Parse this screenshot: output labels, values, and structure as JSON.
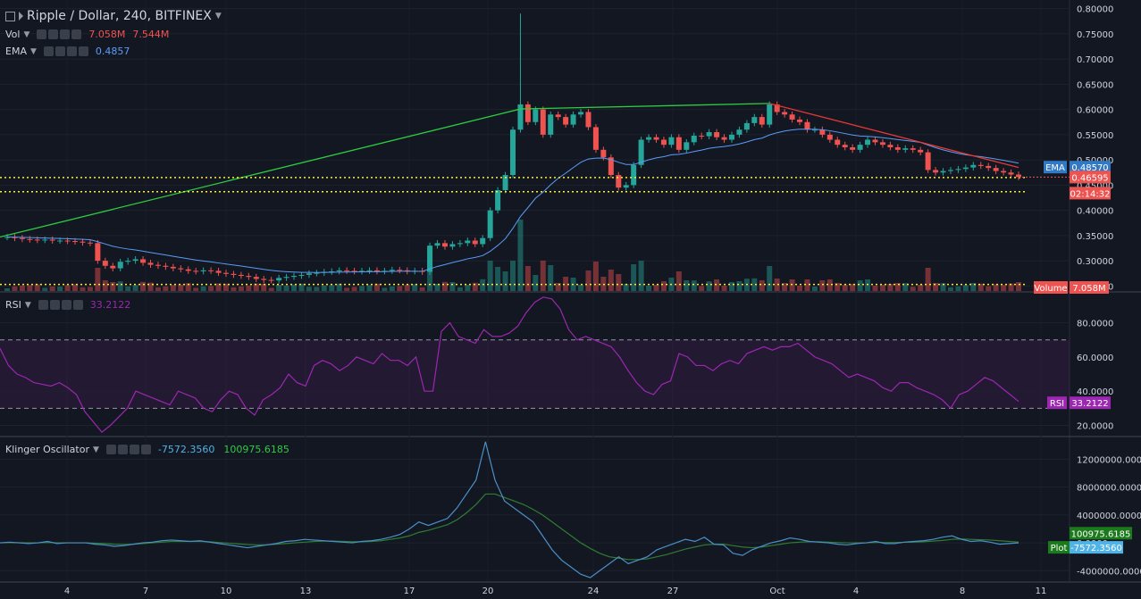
{
  "header": {
    "symbol": "Ripple / Dollar, 240, BITFINEX",
    "vol_label": "Vol",
    "vol_value_1": "7.058M",
    "vol_value_2": "7.544M",
    "ema_label": "EMA",
    "ema_value": "0.4857"
  },
  "rsi_legend": {
    "label": "RSI",
    "value": "33.2122"
  },
  "klinger_legend": {
    "label": "Klinger Oscillator",
    "value_1": "-7572.3560",
    "value_2": "100975.6185"
  },
  "colors": {
    "bg": "#131722",
    "up": "#26a69a",
    "down": "#ef5350",
    "ema": "#5b9cf6",
    "rsi": "#9c27b0",
    "green_line": "#2ecc40",
    "red_line": "#e53935",
    "yellow": "#ffeb3b",
    "klinger": "#4a90c8",
    "klinger_signal": "#2e7d32"
  },
  "axis_labels": {
    "price": [
      "0.80000",
      "0.75000",
      "0.70000",
      "0.65000",
      "0.60000",
      "0.55000",
      "0.50000",
      "0.45000",
      "0.40000",
      "0.35000",
      "0.30000",
      "0.25000"
    ],
    "rsi": [
      "80.0000",
      "60.0000",
      "40.0000",
      "20.0000"
    ],
    "klinger": [
      "12000000.0000",
      "8000000.0000",
      "4000000.0000",
      "0.0000",
      "-4000000.0000"
    ],
    "dates": [
      "4",
      "7",
      "10",
      "13",
      "17",
      "20",
      "24",
      "27",
      "Oct",
      "4",
      "8",
      "11"
    ]
  },
  "badges": {
    "ema_tag": "EMA",
    "ema_val": "0.48570",
    "price": "0.46595",
    "countdown": "02:14:32",
    "volume_tag": "Volume",
    "volume_val": "7.058M",
    "rsi_tag": "RSI",
    "rsi_val": "33.2122",
    "kl_val": "100975.6185",
    "plot_tag": "Plot",
    "plot_val": "-7572.3560"
  },
  "chart_data": {
    "type": "candlestick",
    "title": "Ripple / Dollar, 240, BITFINEX",
    "price_ylim": [
      0.24,
      0.81
    ],
    "price_close": [
      0.347,
      0.345,
      0.343,
      0.342,
      0.341,
      0.342,
      0.34,
      0.34,
      0.339,
      0.338,
      0.336,
      0.335,
      0.3,
      0.29,
      0.285,
      0.298,
      0.3,
      0.303,
      0.296,
      0.292,
      0.29,
      0.288,
      0.285,
      0.283,
      0.28,
      0.279,
      0.281,
      0.28,
      0.276,
      0.274,
      0.272,
      0.27,
      0.268,
      0.264,
      0.262,
      0.261,
      0.266,
      0.268,
      0.27,
      0.272,
      0.275,
      0.276,
      0.278,
      0.279,
      0.281,
      0.28,
      0.279,
      0.28,
      0.281,
      0.279,
      0.28,
      0.282,
      0.281,
      0.279,
      0.28,
      0.278,
      0.33,
      0.335,
      0.328,
      0.333,
      0.335,
      0.34,
      0.333,
      0.345,
      0.4,
      0.44,
      0.47,
      0.56,
      0.61,
      0.575,
      0.6,
      0.55,
      0.59,
      0.585,
      0.57,
      0.59,
      0.595,
      0.565,
      0.52,
      0.505,
      0.47,
      0.445,
      0.45,
      0.49,
      0.54,
      0.545,
      0.54,
      0.53,
      0.545,
      0.52,
      0.535,
      0.548,
      0.547,
      0.555,
      0.545,
      0.54,
      0.55,
      0.56,
      0.573,
      0.585,
      0.57,
      0.61,
      0.595,
      0.59,
      0.58,
      0.575,
      0.56,
      0.56,
      0.55,
      0.54,
      0.53,
      0.525,
      0.52,
      0.53,
      0.54,
      0.535,
      0.53,
      0.525,
      0.52,
      0.523,
      0.52,
      0.515,
      0.48,
      0.475,
      0.478,
      0.48,
      0.482,
      0.485,
      0.49,
      0.488,
      0.484,
      0.478,
      0.475,
      0.471,
      0.466
    ],
    "price_range": [
      0.335,
      0.61
    ],
    "highest_wick": 0.79,
    "ema_last": 0.4857,
    "volume_last": "7.058M",
    "rsi": [
      65,
      55,
      50,
      48,
      45,
      44,
      43,
      45,
      42,
      38,
      28,
      22,
      16,
      20,
      25,
      30,
      40,
      38,
      36,
      34,
      32,
      40,
      38,
      36,
      30,
      28,
      35,
      40,
      38,
      30,
      26,
      35,
      38,
      42,
      50,
      45,
      43,
      55,
      58,
      56,
      52,
      55,
      60,
      58,
      56,
      62,
      58,
      58,
      55,
      60,
      40,
      40,
      75,
      80,
      72,
      70,
      68,
      76,
      72,
      72,
      74,
      78,
      86,
      92,
      95,
      94,
      88,
      76,
      70,
      72,
      70,
      68,
      66,
      60,
      52,
      45,
      40,
      38,
      44,
      46,
      62,
      60,
      55,
      55,
      52,
      56,
      58,
      56,
      62,
      64,
      66,
      64,
      66,
      66,
      68,
      64,
      60,
      58,
      56,
      52,
      48,
      50,
      48,
      46,
      42,
      40,
      45,
      45,
      42,
      40,
      38,
      35,
      30,
      38,
      40,
      44,
      48,
      46,
      42,
      38,
      34
    ],
    "rsi_ylim": [
      14,
      97
    ],
    "rsi_bands": [
      70,
      30
    ],
    "klinger": [
      0,
      100000,
      0,
      -100000,
      0,
      200000,
      -100000,
      0,
      0,
      0,
      -200000,
      -300000,
      -500000,
      -400000,
      -200000,
      0,
      100000,
      300000,
      400000,
      300000,
      200000,
      300000,
      100000,
      -100000,
      -300000,
      -500000,
      -700000,
      -500000,
      -300000,
      -100000,
      200000,
      300000,
      500000,
      400000,
      300000,
      200000,
      100000,
      0,
      200000,
      300000,
      500000,
      800000,
      1200000,
      2000000,
      3000000,
      2500000,
      3000000,
      3500000,
      5000000,
      7000000,
      9000000,
      14500000,
      9000000,
      6000000,
      5000000,
      4000000,
      3000000,
      1000000,
      -1000000,
      -2500000,
      -3500000,
      -4500000,
      -5000000,
      -4000000,
      -3000000,
      -2000000,
      -3000000,
      -2500000,
      -2000000,
      -1000000,
      -500000,
      0,
      500000,
      200000,
      800000,
      -200000,
      -300000,
      -1500000,
      -1800000,
      -1000000,
      -500000,
      0,
      300000,
      700000,
      500000,
      200000,
      100000,
      0,
      -200000,
      -300000,
      -100000,
      0,
      200000,
      -100000,
      -100000,
      100000,
      200000,
      300000,
      500000,
      800000,
      1000000,
      500000,
      200000,
      300000,
      100000,
      -200000,
      -100000,
      -7572
    ],
    "klinger_signal": [
      0,
      20000,
      10000,
      -10000,
      0,
      50000,
      0,
      0,
      0,
      0,
      -50000,
      -100000,
      -200000,
      -250000,
      -200000,
      -100000,
      0,
      100000,
      200000,
      200000,
      200000,
      200000,
      150000,
      50000,
      -50000,
      -150000,
      -250000,
      -300000,
      -280000,
      -200000,
      -100000,
      0,
      100000,
      200000,
      250000,
      250000,
      200000,
      150000,
      150000,
      200000,
      300000,
      500000,
      700000,
      1000000,
      1500000,
      1800000,
      2200000,
      2600000,
      3300000,
      4300000,
      5500000,
      7000000,
      7000000,
      6500000,
      6000000,
      5500000,
      4800000,
      4000000,
      3000000,
      2000000,
      1000000,
      0,
      -800000,
      -1500000,
      -2000000,
      -2200000,
      -2400000,
      -2400000,
      -2300000,
      -2000000,
      -1700000,
      -1300000,
      -900000,
      -600000,
      -300000,
      -200000,
      -200000,
      -400000,
      -600000,
      -700000,
      -600000,
      -400000,
      -200000,
      0,
      100000,
      150000,
      150000,
      100000,
      50000,
      0,
      0,
      0,
      50000,
      50000,
      50000,
      80000,
      100000,
      150000,
      250000,
      350000,
      500000,
      550000,
      500000,
      450000,
      400000,
      300000,
      200000,
      100975
    ],
    "klinger_ylim": [
      -5500000,
      15000000
    ]
  }
}
